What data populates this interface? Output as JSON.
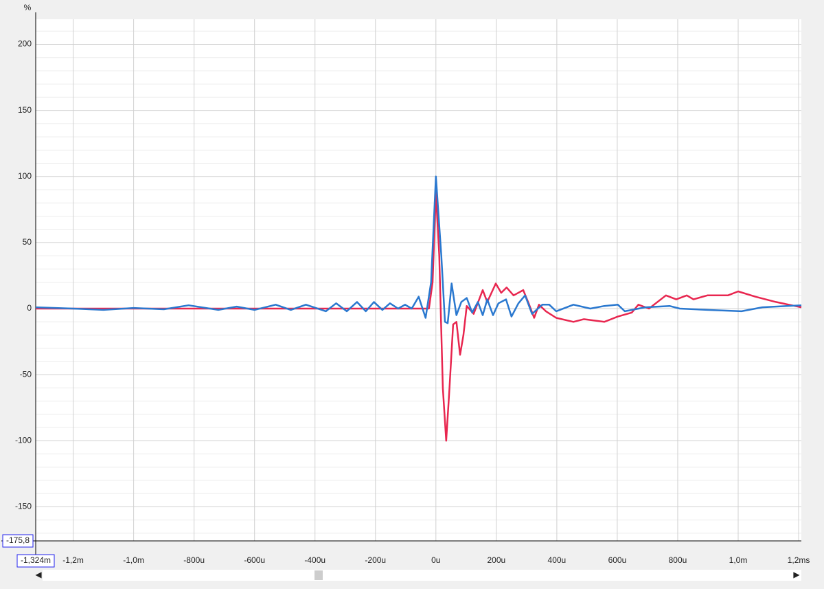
{
  "chart_data": {
    "type": "line",
    "y_label": "%",
    "xlim": [
      -1324,
      1209
    ],
    "ylim": [
      -175.8,
      219
    ],
    "x_cursor": {
      "value": -1324,
      "label": "-1,324m"
    },
    "y_cursor": {
      "value": -175.8,
      "label": "-175,8"
    },
    "yticks": [
      -150,
      -100,
      -50,
      0,
      50,
      100,
      150,
      200
    ],
    "xticks": [
      {
        "value": -1200,
        "label": "-1,2m"
      },
      {
        "value": -1000,
        "label": "-1,0m"
      },
      {
        "value": -800,
        "label": "-800u"
      },
      {
        "value": -600,
        "label": "-600u"
      },
      {
        "value": -400,
        "label": "-400u"
      },
      {
        "value": -200,
        "label": "-200u"
      },
      {
        "value": 0,
        "label": "0u"
      },
      {
        "value": 200,
        "label": "200u"
      },
      {
        "value": 400,
        "label": "400u"
      },
      {
        "value": 600,
        "label": "600u"
      },
      {
        "value": 800,
        "label": "800u"
      },
      {
        "value": 1000,
        "label": "1,0m"
      },
      {
        "value": 1200,
        "label": "1,2ms"
      }
    ],
    "grid": true,
    "series": [
      {
        "color": "#e8264f",
        "x": [
          -1324,
          -600,
          -100,
          -23,
          -11,
          0,
          11,
          23,
          34,
          45,
          57,
          68,
          80,
          91,
          102,
          125,
          155,
          170,
          198,
          216,
          234,
          257,
          289,
          307,
          325,
          341,
          364,
          398,
          455,
          489,
          557,
          602,
          648,
          670,
          705,
          761,
          795,
          830,
          852,
          898,
          966,
          1000,
          1057,
          1125,
          1209
        ],
        "values": [
          0,
          0,
          0,
          0,
          20,
          88,
          40,
          -60,
          -100,
          -60,
          -12,
          -10,
          -35,
          -20,
          2,
          -4,
          14,
          5,
          19,
          12,
          16,
          10,
          14,
          4,
          -7,
          3,
          -2,
          -7,
          -10,
          -8,
          -10,
          -6,
          -3,
          3,
          0,
          10,
          7,
          10,
          7,
          10,
          10,
          13,
          9,
          5,
          1
        ]
      },
      {
        "color": "#2a78cf",
        "x": [
          -1324,
          -1200,
          -1100,
          -1000,
          -900,
          -818,
          -720,
          -659,
          -600,
          -530,
          -480,
          -430,
          -364,
          -330,
          -295,
          -261,
          -232,
          -205,
          -177,
          -152,
          -125,
          -102,
          -80,
          -57,
          -34,
          -16,
          0,
          18,
          30,
          39,
          52,
          68,
          84,
          102,
          120,
          139,
          155,
          170,
          189,
          207,
          232,
          250,
          273,
          295,
          318,
          352,
          375,
          398,
          455,
          511,
          557,
          602,
          625,
          693,
          773,
          807,
          898,
          1011,
          1080,
          1209
        ],
        "values": [
          1,
          0,
          -1,
          0.5,
          -0.5,
          2.5,
          -1,
          1.5,
          -1,
          3,
          -1,
          3,
          -2,
          4,
          -2,
          5,
          -2,
          5,
          -1,
          4,
          0,
          3,
          0,
          9,
          -7,
          20,
          100,
          40,
          -10,
          -11,
          19,
          -5,
          5,
          8,
          -3,
          5,
          -5,
          7,
          -5,
          4,
          7,
          -6,
          4,
          10,
          -4,
          3,
          3,
          -2,
          3,
          0,
          2,
          3,
          -2,
          1,
          2,
          0,
          -1,
          -2,
          1,
          2.5
        ]
      }
    ]
  }
}
